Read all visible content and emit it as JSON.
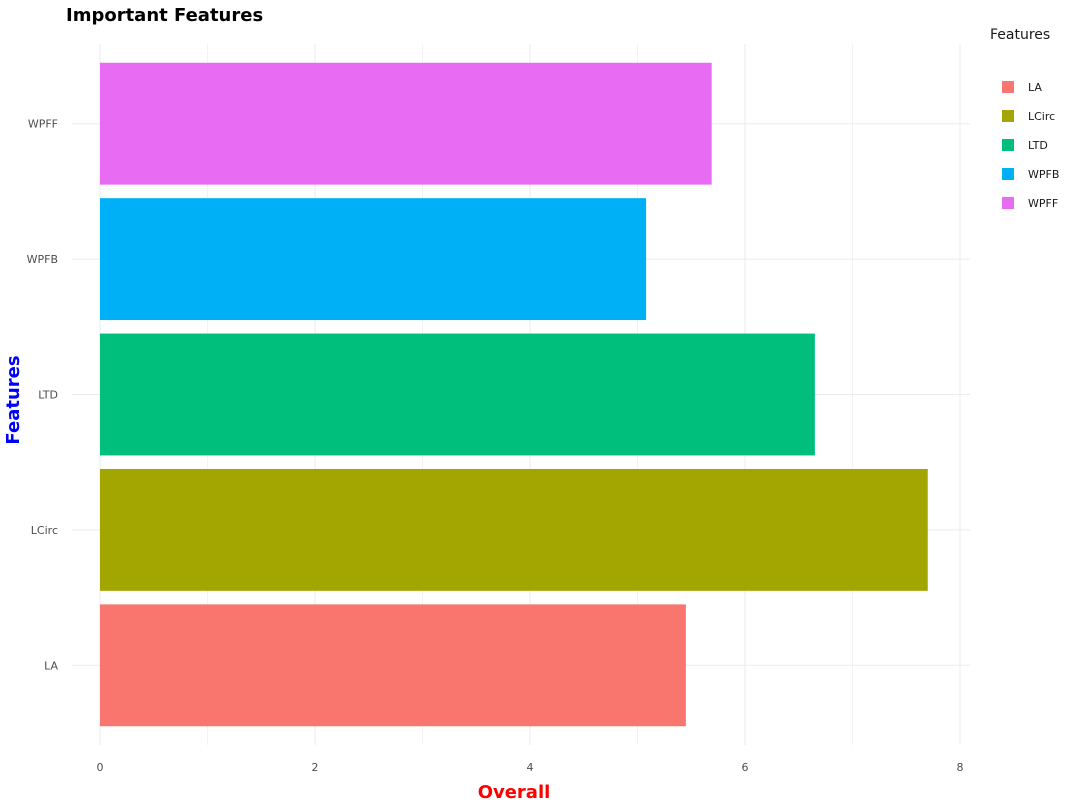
{
  "chart_data": {
    "type": "bar",
    "orientation": "horizontal",
    "title": "Important Features",
    "xlabel": "Overall",
    "ylabel": "Features",
    "categories": [
      "LA",
      "LCirc",
      "LTD",
      "WPFB",
      "WPFF"
    ],
    "values": [
      5.45,
      7.7,
      6.65,
      5.08,
      5.69
    ],
    "colors": [
      "#F8766D",
      "#A3A500",
      "#00BF7D",
      "#00B0F6",
      "#E76BF3"
    ],
    "xlim": [
      0,
      8
    ],
    "xticks": [
      "0",
      "2",
      "4",
      "6",
      "8"
    ],
    "grid": true,
    "legend": {
      "title": "Features",
      "position": "right",
      "items": [
        "LA",
        "LCirc",
        "LTD",
        "WPFB",
        "WPFF"
      ]
    },
    "title_color": "#000000",
    "xlabel_color": "#FF0000",
    "ylabel_color": "#0000FF"
  }
}
